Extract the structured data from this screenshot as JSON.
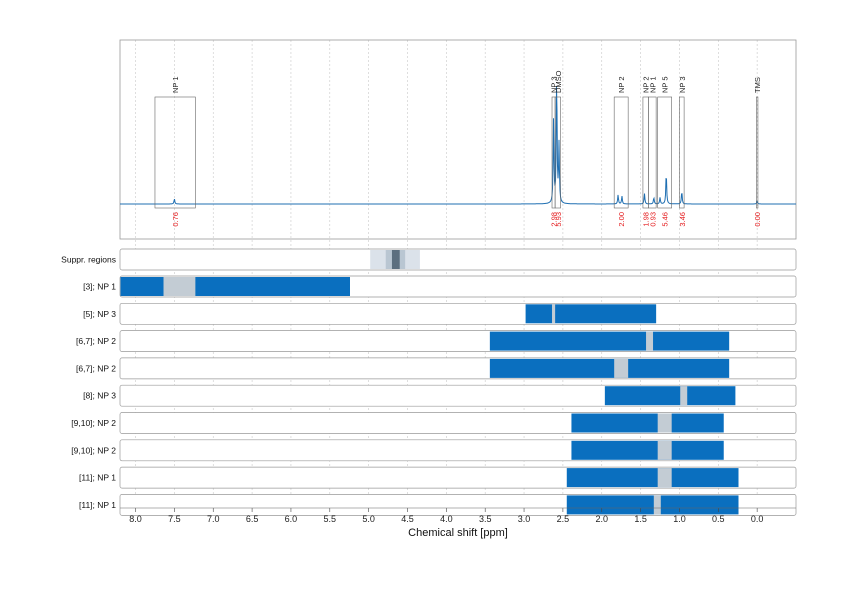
{
  "colors": {
    "spectrum": "#1f6fb2",
    "bar": "#0a6fbf",
    "gap": "#c3ccd4",
    "suppression_outer": "#dbe2ea",
    "suppression_mid": "#b9c6d2",
    "suppression_core": "#5c6f7f",
    "integral_text": "#e41a1c",
    "panel_border": "#999999",
    "grid": "#c8c8c8"
  },
  "chart_data": {
    "type": "nmr-spectrum-with-range-panels",
    "xlabel": "Chemical shift [ppm]",
    "xlim": [
      8.2,
      -0.5
    ],
    "x_reversed": true,
    "ticks": [
      8.0,
      7.5,
      7.0,
      6.5,
      6.0,
      5.5,
      5.0,
      4.5,
      4.0,
      3.5,
      3.0,
      2.5,
      2.0,
      1.5,
      1.0,
      0.5,
      0.0
    ],
    "tick_labels": [
      "8.0",
      "7.5",
      "7.0",
      "6.5",
      "6.0",
      "5.5",
      "5.0",
      "4.5",
      "4.0",
      "3.5",
      "3.0",
      "2.5",
      "2.0",
      "1.5",
      "1.0",
      "0.5",
      "0.0"
    ],
    "peaks": [
      {
        "label": "NP 1",
        "lo": 7.23,
        "hi": 7.75,
        "integral": "0.76"
      },
      {
        "label": "NP 3",
        "lo": 2.6,
        "hi": 2.64,
        "integral": "2.98"
      },
      {
        "label": "DMSO",
        "lo": 2.53,
        "hi": 2.6,
        "integral": "5.93"
      },
      {
        "label": "NP 2",
        "lo": 1.66,
        "hi": 1.84,
        "integral": "2.00"
      },
      {
        "label": "NP 2",
        "lo": 1.4,
        "hi": 1.47,
        "integral": "1.98"
      },
      {
        "label": "NP 1",
        "lo": 1.3,
        "hi": 1.4,
        "integral": "0.93"
      },
      {
        "label": "NP 5",
        "lo": 1.1,
        "hi": 1.28,
        "integral": "5.46"
      },
      {
        "label": "NP 3",
        "lo": 0.94,
        "hi": 1.0,
        "integral": "3.46"
      },
      {
        "label": "TMS",
        "lo": -0.01,
        "hi": 0.01,
        "integral": "0.00"
      }
    ],
    "spectrum_peaks": [
      {
        "ppm": 7.5,
        "height": 0.04
      },
      {
        "ppm": 2.62,
        "height": 0.65
      },
      {
        "ppm": 2.58,
        "height": 1.0
      },
      {
        "ppm": 2.55,
        "height": 0.45
      },
      {
        "ppm": 1.79,
        "height": 0.07
      },
      {
        "ppm": 1.74,
        "height": 0.06
      },
      {
        "ppm": 1.45,
        "height": 0.08
      },
      {
        "ppm": 1.33,
        "height": 0.05
      },
      {
        "ppm": 1.17,
        "height": 0.25
      },
      {
        "ppm": 1.25,
        "height": 0.05
      },
      {
        "ppm": 0.97,
        "height": 0.1
      },
      {
        "ppm": 0.0,
        "height": 0.02
      }
    ],
    "suppression": {
      "label": "Suppr. regions",
      "outer": [
        4.34,
        4.98
      ],
      "mid": [
        4.53,
        4.78
      ],
      "core": [
        4.6,
        4.7
      ]
    },
    "rows": [
      {
        "label": "[3]; NP 1",
        "bar": [
          5.24,
          8.2
        ],
        "gap": [
          7.23,
          7.64
        ]
      },
      {
        "label": "[5]; NP 3",
        "bar": [
          1.3,
          2.98
        ],
        "gap": [
          2.6,
          2.64
        ]
      },
      {
        "label": "[6,7]; NP 2",
        "bar": [
          0.36,
          3.44
        ],
        "gap": [
          1.34,
          1.43
        ]
      },
      {
        "label": "[6,7]; NP 2",
        "bar": [
          0.36,
          3.44
        ],
        "gap": [
          1.66,
          1.84
        ]
      },
      {
        "label": "[8]; NP 3",
        "bar": [
          0.28,
          1.96
        ],
        "gap": [
          0.9,
          0.99
        ]
      },
      {
        "label": "[9,10]; NP 2",
        "bar": [
          0.43,
          2.39
        ],
        "gap": [
          1.1,
          1.28
        ]
      },
      {
        "label": "[9,10]; NP 2",
        "bar": [
          0.43,
          2.39
        ],
        "gap": [
          1.1,
          1.28
        ]
      },
      {
        "label": "[11]; NP 1",
        "bar": [
          0.24,
          2.45
        ],
        "gap": [
          1.1,
          1.28
        ]
      },
      {
        "label": "[11]; NP 1",
        "bar": [
          0.24,
          2.45
        ],
        "gap": [
          1.24,
          1.33
        ]
      }
    ]
  }
}
